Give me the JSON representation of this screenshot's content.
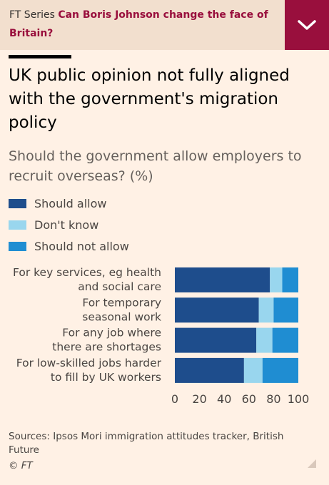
{
  "header": {
    "series_label": "FT Series",
    "series_title": "Can Boris Johnson change the face of Britain?",
    "toggle_icon": "chevron-down-icon"
  },
  "headline": "UK public opinion not fully aligned with the government's migration policy",
  "colors": {
    "should_allow": "#1e4d8c",
    "dont_know": "#99d6ee",
    "should_not_allow": "#1f8dd2",
    "brand": "#990f3d",
    "background": "#fff1e5"
  },
  "chart_data": {
    "type": "bar",
    "orientation": "horizontal",
    "stacked": true,
    "title": "Should the government allow employers to recruit overseas? (%)",
    "categories": [
      [
        "For key services, eg health",
        "and social care"
      ],
      [
        "For temporary",
        "seasonal work"
      ],
      [
        "For any job where",
        "there are shortages"
      ],
      [
        "For low-skilled jobs harder",
        "to fill by UK workers"
      ]
    ],
    "series": [
      {
        "name": "Should allow",
        "color": "#1e4d8c",
        "values": [
          77,
          68,
          66,
          56
        ]
      },
      {
        "name": "Don't know",
        "color": "#99d6ee",
        "values": [
          10,
          12,
          13,
          15
        ]
      },
      {
        "name": "Should not allow",
        "color": "#1f8dd2",
        "values": [
          13,
          20,
          21,
          29
        ]
      }
    ],
    "xlim": [
      0,
      100
    ],
    "xticks": [
      0,
      20,
      40,
      60,
      80,
      100
    ],
    "legend_position": "top-left"
  },
  "footer": {
    "sources": "Sources: Ipsos Mori immigration attitudes tracker, British Future",
    "copyright": "© FT"
  }
}
